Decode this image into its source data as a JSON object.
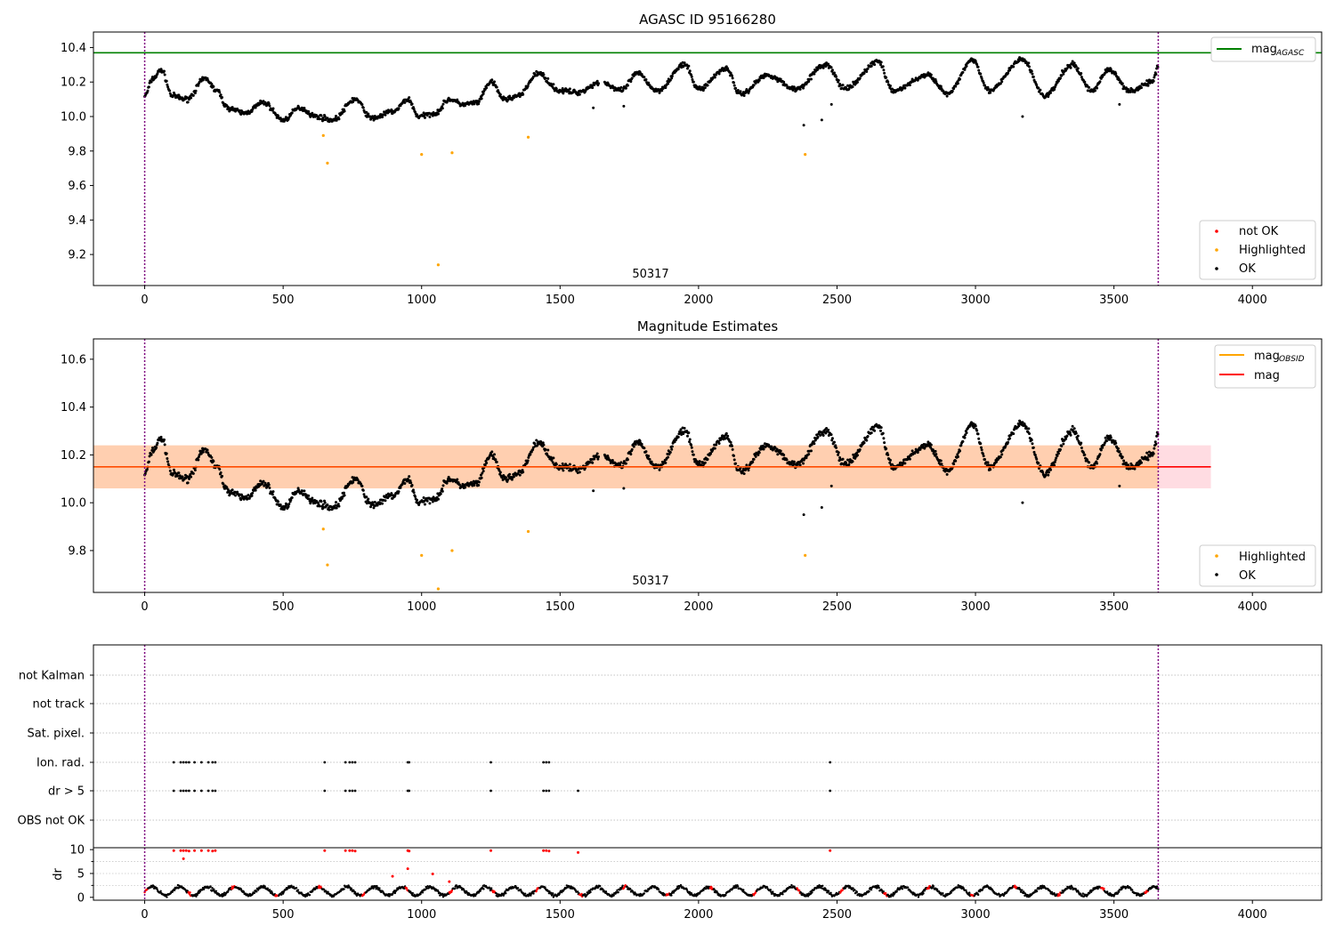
{
  "chart_data": [
    {
      "type": "scatter",
      "title": "AGASC ID 95166280",
      "xlabel": "",
      "ylabel": "",
      "xlim": [
        -185,
        4250
      ],
      "ylim": [
        9.02,
        10.49
      ],
      "xticks": [
        0,
        500,
        1000,
        1500,
        2000,
        2500,
        3000,
        3500,
        4000
      ],
      "yticks": [
        9.2,
        9.4,
        9.6,
        9.8,
        10.0,
        10.2,
        10.4
      ],
      "ytick_labels": [
        "9.2",
        "9.4",
        "9.6",
        "9.8",
        "10.0",
        "10.2",
        "10.4"
      ],
      "grid": false,
      "vlines": [
        0,
        3660
      ],
      "annotation": {
        "text": "50317",
        "x": 1830,
        "y": 9.12
      },
      "reference_line": {
        "name": "mag",
        "subscript": "AGASC",
        "y": 10.37,
        "color": "#008000"
      },
      "legend_upper": {
        "position": "upper right",
        "entries": [
          {
            "label": "mag",
            "sub": "AGASC",
            "color": "#008000"
          }
        ]
      },
      "legend_lower": {
        "position": "lower right",
        "entries": [
          {
            "label": "not OK",
            "color": "#ff0000"
          },
          {
            "label": "Highlighted",
            "color": "#ffa500"
          },
          {
            "label": "OK",
            "color": "#000000"
          }
        ]
      },
      "highlighted_points": [
        [
          645,
          9.89
        ],
        [
          660,
          9.73
        ],
        [
          1000,
          9.78
        ],
        [
          1060,
          9.14
        ],
        [
          1110,
          9.79
        ],
        [
          1385,
          9.88
        ],
        [
          2385,
          9.78
        ]
      ],
      "ok_outliers": [
        [
          1620,
          10.05
        ],
        [
          1730,
          10.06
        ],
        [
          2380,
          9.95
        ],
        [
          2445,
          9.98
        ],
        [
          2480,
          10.07
        ],
        [
          3170,
          10.0
        ],
        [
          3520,
          10.07
        ]
      ],
      "ok_series_profile": [
        [
          0,
          10.12
        ],
        [
          30,
          10.22
        ],
        [
          60,
          10.27
        ],
        [
          100,
          10.12
        ],
        [
          150,
          10.1
        ],
        [
          220,
          10.22
        ],
        [
          260,
          10.15
        ],
        [
          300,
          10.05
        ],
        [
          360,
          10.02
        ],
        [
          430,
          10.08
        ],
        [
          500,
          9.98
        ],
        [
          560,
          10.05
        ],
        [
          620,
          10.0
        ],
        [
          680,
          9.98
        ],
        [
          760,
          10.1
        ],
        [
          820,
          9.99
        ],
        [
          900,
          10.03
        ],
        [
          950,
          10.1
        ],
        [
          990,
          10.0
        ],
        [
          1050,
          10.02
        ],
        [
          1100,
          10.1
        ],
        [
          1150,
          10.07
        ],
        [
          1200,
          10.08
        ],
        [
          1250,
          10.2
        ],
        [
          1300,
          10.1
        ],
        [
          1350,
          10.12
        ],
        [
          1420,
          10.25
        ],
        [
          1500,
          10.15
        ],
        [
          1560,
          10.14
        ],
        [
          1650,
          10.2
        ],
        [
          1720,
          10.15
        ],
        [
          1780,
          10.25
        ],
        [
          1850,
          10.15
        ],
        [
          1950,
          10.3
        ],
        [
          2000,
          10.16
        ],
        [
          2100,
          10.28
        ],
        [
          2150,
          10.13
        ],
        [
          2250,
          10.24
        ],
        [
          2350,
          10.16
        ],
        [
          2460,
          10.3
        ],
        [
          2530,
          10.16
        ],
        [
          2650,
          10.32
        ],
        [
          2700,
          10.15
        ],
        [
          2830,
          10.24
        ],
        [
          2900,
          10.13
        ],
        [
          2990,
          10.33
        ],
        [
          3050,
          10.15
        ],
        [
          3170,
          10.33
        ],
        [
          3250,
          10.12
        ],
        [
          3350,
          10.3
        ],
        [
          3420,
          10.15
        ],
        [
          3480,
          10.27
        ],
        [
          3560,
          10.15
        ],
        [
          3640,
          10.2
        ],
        [
          3660,
          10.3
        ]
      ]
    },
    {
      "type": "scatter",
      "title": "Magnitude Estimates",
      "xlabel": "",
      "ylabel": "",
      "xlim": [
        -185,
        4250
      ],
      "ylim": [
        9.625,
        10.685
      ],
      "xticks": [
        0,
        500,
        1000,
        1500,
        2000,
        2500,
        3000,
        3500,
        4000
      ],
      "yticks": [
        9.8,
        10.0,
        10.2,
        10.4,
        10.6
      ],
      "ytick_labels": [
        "9.8",
        "10.0",
        "10.2",
        "10.4",
        "10.6"
      ],
      "grid": false,
      "vlines": [
        0,
        3660
      ],
      "annotation": {
        "text": "50317",
        "x": 1830,
        "y": 9.655
      },
      "mean_line": {
        "name": "mag",
        "y": 10.15,
        "color": "#ff0000"
      },
      "band": {
        "y0": 10.06,
        "y1": 10.24,
        "x0": -185,
        "x1": 3850
      },
      "legend_upper": {
        "position": "upper right",
        "entries": [
          {
            "label": "mag",
            "sub": "OBSID",
            "color": "#ffa500"
          },
          {
            "label": "mag",
            "sub": "",
            "color": "#ff0000"
          }
        ]
      },
      "legend_lower": {
        "position": "lower right",
        "entries": [
          {
            "label": "Highlighted",
            "color": "#ffa500"
          },
          {
            "label": "OK",
            "color": "#000000"
          }
        ]
      },
      "highlighted_points": [
        [
          645,
          9.89
        ],
        [
          660,
          9.74
        ],
        [
          1000,
          9.78
        ],
        [
          1060,
          9.64
        ],
        [
          1110,
          9.8
        ],
        [
          1385,
          9.88
        ],
        [
          2385,
          9.78
        ]
      ],
      "ok_outliers": [
        [
          1620,
          10.05
        ],
        [
          1730,
          10.06
        ],
        [
          2380,
          9.95
        ],
        [
          2445,
          9.98
        ],
        [
          2480,
          10.07
        ],
        [
          3170,
          10.0
        ],
        [
          3520,
          10.07
        ]
      ]
    },
    {
      "type": "scatter",
      "title": "",
      "xlabel": "",
      "xlim": [
        -185,
        4250
      ],
      "xticks": [
        0,
        500,
        1000,
        1500,
        2000,
        2500,
        3000,
        3500,
        4000
      ],
      "vlines": [
        0,
        3660
      ],
      "flag_rows": [
        "not Kalman",
        "not track",
        "Sat. pixel.",
        "Ion. rad.",
        "dr > 5",
        "OBS not OK"
      ],
      "flag_points": {
        "Ion. rad.": [
          105,
          130,
          140,
          150,
          160,
          180,
          205,
          230,
          245,
          255,
          650,
          725,
          740,
          750,
          760,
          950,
          955,
          1250,
          1440,
          1450,
          1460,
          2475
        ],
        "dr > 5": [
          105,
          130,
          140,
          150,
          160,
          180,
          205,
          230,
          245,
          255,
          650,
          725,
          740,
          750,
          760,
          950,
          955,
          1250,
          1440,
          1450,
          1460,
          1565,
          2475
        ]
      },
      "dr_panel": {
        "ylabel": "dr",
        "ylim": [
          -0.6,
          10.4
        ],
        "yticks": [
          0,
          5,
          10
        ],
        "ytick_labels": [
          "0",
          "5",
          "10"
        ],
        "red_high_points": [
          [
            105,
            9.8
          ],
          [
            130,
            9.8
          ],
          [
            140,
            9.8
          ],
          [
            150,
            9.8
          ],
          [
            160,
            9.7
          ],
          [
            180,
            9.8
          ],
          [
            205,
            9.8
          ],
          [
            230,
            9.8
          ],
          [
            245,
            9.7
          ],
          [
            255,
            9.8
          ],
          [
            650,
            9.8
          ],
          [
            725,
            9.8
          ],
          [
            740,
            9.8
          ],
          [
            750,
            9.8
          ],
          [
            760,
            9.7
          ],
          [
            950,
            9.8
          ],
          [
            955,
            9.7
          ],
          [
            1250,
            9.8
          ],
          [
            1440,
            9.8
          ],
          [
            1450,
            9.8
          ],
          [
            1460,
            9.7
          ],
          [
            1565,
            9.4
          ],
          [
            2475,
            9.8
          ],
          [
            140,
            8.1
          ],
          [
            950,
            6.0
          ],
          [
            1040,
            4.9
          ],
          [
            1100,
            3.3
          ],
          [
            895,
            4.4
          ]
        ]
      }
    }
  ]
}
